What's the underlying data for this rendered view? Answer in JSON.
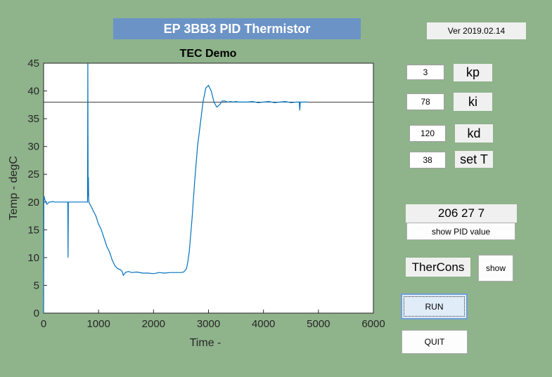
{
  "window": {
    "title": "EP 3BB3 PID Thermistor",
    "version": "Ver 2019.02.14"
  },
  "controls": {
    "kp": {
      "value": "3",
      "label": "kp"
    },
    "ki": {
      "value": "78",
      "label": "ki"
    },
    "kd": {
      "value": "120",
      "label": "kd"
    },
    "setT": {
      "value": "38",
      "label": "set T"
    },
    "pid_readout": "206 27 7",
    "show_pid_label": "show PID value",
    "thercons_label": "TherCons",
    "show_label": "show",
    "run_label": "RUN",
    "quit_label": "QUIT"
  },
  "colors": {
    "background": "#8fb38b",
    "title_banner": "#6b93c6",
    "line": "#0072bd",
    "setpoint_line": "#000000"
  },
  "chart_data": {
    "type": "line",
    "title": "TEC Demo",
    "xlabel": "Time -",
    "ylabel": "Temp - degC",
    "xlim": [
      0,
      6000
    ],
    "ylim": [
      0,
      45
    ],
    "xticks": [
      0,
      1000,
      2000,
      3000,
      4000,
      5000,
      6000
    ],
    "yticks": [
      0,
      5,
      10,
      15,
      20,
      25,
      30,
      35,
      40,
      45
    ],
    "grid": false,
    "setpoint": 38,
    "series": [
      {
        "color": "#0072bd",
        "x": [
          0,
          5,
          10,
          20,
          40,
          60,
          80,
          100,
          130,
          170,
          200,
          250,
          300,
          350,
          400,
          440,
          445,
          450,
          455,
          460,
          500,
          550,
          600,
          650,
          700,
          750,
          790,
          800,
          805,
          810,
          815,
          820,
          825,
          830,
          850,
          900,
          950,
          1000,
          1050,
          1100,
          1150,
          1200,
          1250,
          1300,
          1350,
          1400,
          1430,
          1450,
          1480,
          1500,
          1550,
          1600,
          1700,
          1800,
          1900,
          2000,
          2100,
          2200,
          2300,
          2400,
          2500,
          2550,
          2600,
          2620,
          2650,
          2700,
          2750,
          2800,
          2850,
          2900,
          2950,
          3000,
          3050,
          3100,
          3150,
          3200,
          3250,
          3300,
          3350,
          3400,
          3450,
          3500,
          3550,
          3600,
          3700,
          3800,
          3900,
          4000,
          4100,
          4200,
          4300,
          4400,
          4500,
          4600,
          4650,
          4660,
          4670,
          4680,
          4700,
          4750,
          4800
        ],
        "y": [
          0,
          21,
          21,
          20.5,
          20,
          19.6,
          19.8,
          20,
          20,
          20.1,
          20,
          20,
          20,
          20,
          20,
          20,
          10,
          20,
          20,
          20,
          20,
          20,
          20,
          20,
          20,
          20,
          20,
          20,
          45,
          21,
          24.5,
          20.5,
          20,
          19.8,
          19.5,
          18.5,
          17.5,
          16,
          15,
          13.5,
          12,
          11,
          9.5,
          8.5,
          8,
          7.8,
          7.5,
          6.8,
          7.2,
          7.4,
          7.5,
          7.3,
          7.4,
          7.2,
          7.2,
          7.1,
          7.3,
          7.2,
          7.3,
          7.3,
          7.3,
          7.4,
          8,
          9,
          11,
          17,
          24,
          30,
          34,
          38,
          40.5,
          41,
          40,
          38,
          37.1,
          37.5,
          38.2,
          38.2,
          38.0,
          38.1,
          38.0,
          38.1,
          38.0,
          38.0,
          38.0,
          38.1,
          37.9,
          38.0,
          38.1,
          37.9,
          38.0,
          38.1,
          37.9,
          38.0,
          38.0,
          36.5,
          38.0,
          38.0,
          38.0,
          38.0,
          38.0
        ]
      }
    ]
  }
}
